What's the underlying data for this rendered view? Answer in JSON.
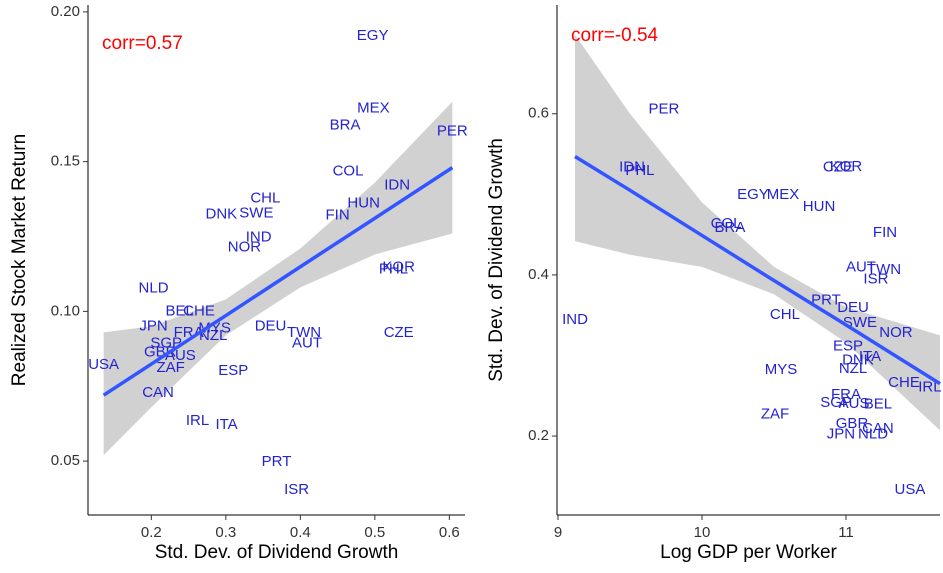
{
  "chart_data": [
    {
      "type": "scatter",
      "annotation": "corr=0.57",
      "annotation_color": "#ff0000",
      "xlabel": "Std. Dev. of Dividend Growth",
      "ylabel": "Realized Stock Market Return",
      "xlim": [
        0.115,
        0.621
      ],
      "ylim": [
        0.032,
        0.2023
      ],
      "xticks": [
        0.2,
        0.3,
        0.4,
        0.5,
        0.6
      ],
      "yticks": [
        0.05,
        {
          "value": 0.1,
          "label": "0.10"
        },
        0.15,
        {
          "value": 0.2,
          "label": "0.20"
        }
      ],
      "point_color": "#2323d0",
      "labels": [
        "EGY",
        "MEX",
        "BRA",
        "PER",
        "COL",
        "IDN",
        "HUN",
        "FIN",
        "CHL",
        "SWE",
        "DNK",
        "IND",
        "NOR",
        "KOR",
        "PHL",
        "NLD",
        "BEL",
        "CHE",
        "JPN",
        "FRA",
        "NZL",
        "MYS",
        "SGP",
        "GBR",
        "AUS",
        "DEU",
        "TWN",
        "AUT",
        "CZE",
        "USA",
        "ZAF",
        "ESP",
        "CAN",
        "IRL",
        "ITA",
        "PRT",
        "ISR"
      ],
      "x": [
        0.497,
        0.498,
        0.46,
        0.604,
        0.464,
        0.53,
        0.485,
        0.45,
        0.353,
        0.341,
        0.294,
        0.344,
        0.325,
        0.532,
        0.525,
        0.203,
        0.238,
        0.264,
        0.203,
        0.25,
        0.283,
        0.285,
        0.22,
        0.212,
        0.239,
        0.36,
        0.405,
        0.409,
        0.532,
        0.136,
        0.226,
        0.31,
        0.209,
        0.262,
        0.301,
        0.368,
        0.395
      ],
      "y": [
        0.192,
        0.1677,
        0.162,
        0.16,
        0.1467,
        0.142,
        0.136,
        0.132,
        0.1377,
        0.1327,
        0.1323,
        0.1247,
        0.1213,
        0.1147,
        0.114,
        0.1077,
        0.1,
        0.1,
        0.095,
        0.0927,
        0.0917,
        0.0943,
        0.0893,
        0.0863,
        0.085,
        0.095,
        0.0927,
        0.0893,
        0.0927,
        0.082,
        0.081,
        0.08,
        0.0727,
        0.0633,
        0.062,
        0.0497,
        0.0403
      ],
      "fit": {
        "color": "#3355ff",
        "band_color": "#cccccc",
        "x": [
          0.136,
          0.2,
          0.3,
          0.4,
          0.5,
          0.604
        ],
        "y": [
          0.072,
          0.0824,
          0.0986,
          0.1149,
          0.1311,
          0.148
        ],
        "lower": [
          0.052,
          0.068,
          0.092,
          0.108,
          0.119,
          0.126
        ],
        "upper": [
          0.093,
          0.095,
          0.104,
          0.121,
          0.143,
          0.17
        ]
      }
    },
    {
      "type": "scatter",
      "annotation": "corr=-0.54",
      "annotation_color": "#ff0000",
      "xlabel": "Log GDP per Worker",
      "ylabel": "Std. Dev. of Dividend Growth",
      "xlim": [
        8.993,
        11.653
      ],
      "ylim": [
        0.102,
        0.735
      ],
      "xticks": [
        9,
        10,
        11
      ],
      "yticks": [
        0.2,
        0.4,
        0.6
      ],
      "point_color": "#2323d0",
      "labels": [
        "PER",
        "IDN",
        "PHL",
        "KOR",
        "CZE",
        "EGY",
        "MEX",
        "HUN",
        "COL",
        "BRA",
        "FIN",
        "AUT",
        "TWN",
        "ISR",
        "PRT",
        "DEU",
        "CHL",
        "SWE",
        "NOR",
        "IND",
        "ESP",
        "ITA",
        "DNK",
        "NZL",
        "MYS",
        "CHE",
        "IRL",
        "FRA",
        "SGP",
        "AUS",
        "BEL",
        "ZAF",
        "GBR",
        "CAN",
        "JPN",
        "NLD",
        "USA"
      ],
      "x": [
        9.736,
        9.514,
        9.569,
        11.0,
        10.944,
        10.354,
        10.563,
        10.813,
        10.167,
        10.194,
        11.271,
        11.104,
        11.264,
        11.208,
        10.861,
        11.049,
        10.576,
        11.097,
        11.347,
        9.118,
        11.014,
        11.167,
        11.083,
        11.049,
        10.549,
        11.403,
        11.583,
        11.0,
        10.931,
        11.056,
        11.222,
        10.507,
        11.042,
        11.222,
        10.965,
        11.188,
        11.444
      ],
      "y": [
        0.605,
        0.533,
        0.529,
        0.534,
        0.533,
        0.499,
        0.499,
        0.484,
        0.463,
        0.458,
        0.452,
        0.409,
        0.406,
        0.394,
        0.368,
        0.359,
        0.35,
        0.34,
        0.328,
        0.344,
        0.311,
        0.298,
        0.294,
        0.283,
        0.282,
        0.266,
        0.26,
        0.251,
        0.241,
        0.24,
        0.239,
        0.227,
        0.215,
        0.209,
        0.202,
        0.202,
        0.133
      ],
      "fit": {
        "color": "#3355ff",
        "band_color": "#cccccc",
        "x": [
          9.118,
          9.5,
          10.0,
          10.5,
          11.0,
          11.653
        ],
        "y": [
          0.547,
          0.505,
          0.449,
          0.393,
          0.338,
          0.265
        ],
        "lower": [
          0.442,
          0.425,
          0.41,
          0.376,
          0.316,
          0.207
        ],
        "upper": [
          0.698,
          0.6,
          0.49,
          0.41,
          0.36,
          0.325
        ]
      }
    }
  ]
}
